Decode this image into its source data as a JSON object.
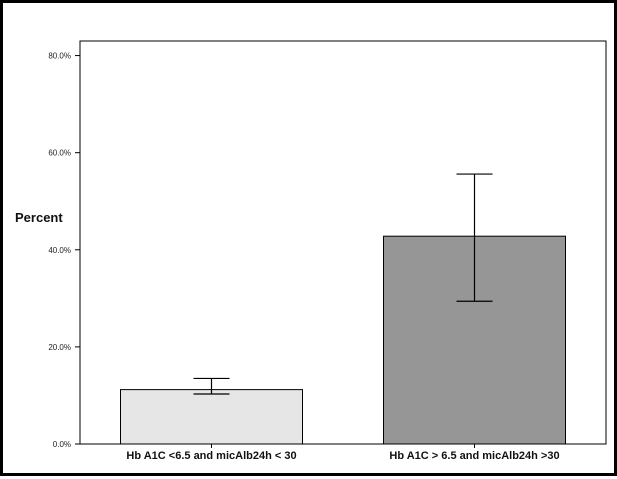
{
  "chart_data": {
    "type": "bar",
    "title": "",
    "xlabel": "",
    "ylabel": "Percent",
    "categories": [
      "Hb A1C <6.5 and micAlb24h < 30",
      "Hb A1C > 6.5 and micAlb24h >30"
    ],
    "values": [
      11.2,
      42.8
    ],
    "error_low": [
      10.3,
      29.4
    ],
    "error_high": [
      13.5,
      55.6
    ],
    "bar_colors": [
      "#e6e6e6",
      "#969696"
    ],
    "ylim": [
      0,
      83
    ],
    "yticks": [
      0,
      20,
      40,
      60,
      80
    ],
    "ytick_labels": [
      "0.0%",
      "20.0%",
      "40.0%",
      "60.0%",
      "80.0%"
    ],
    "grid": false,
    "legend": "none"
  }
}
